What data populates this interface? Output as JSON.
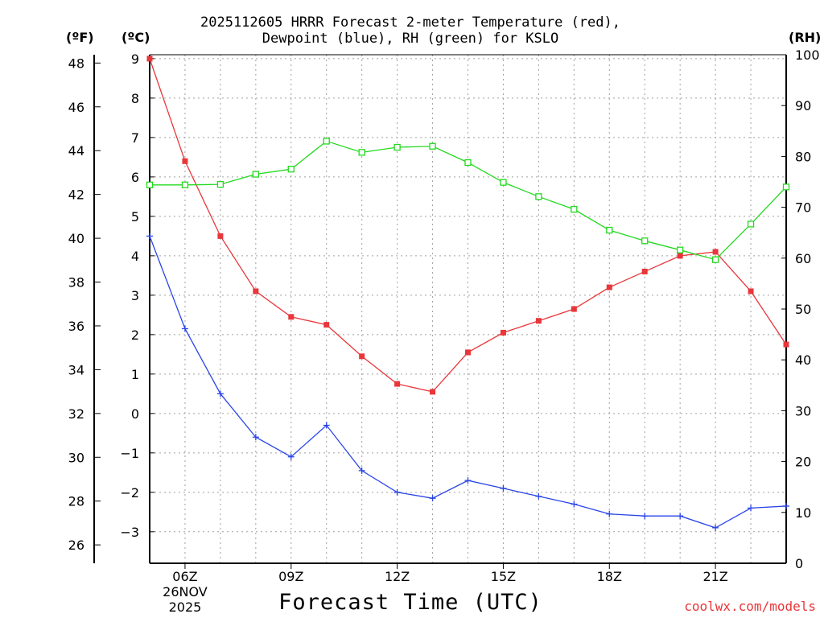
{
  "title": {
    "line1": "2025112605 HRRR Forecast 2-meter Temperature (red),",
    "line2": "Dewpoint (blue), RH (green) for KSLO"
  },
  "units": {
    "fahrenheit": "(ºF)",
    "celsius": "(ºC)",
    "rh": "(RH)"
  },
  "x_axis_label": "Forecast Time (UTC)",
  "credit": "coolwx.com/models",
  "colors": {
    "temperature": "#e8363a",
    "dewpoint": "#2a45e8",
    "rh": "#22d91e",
    "grid": "#a0a0a0"
  },
  "chart_data": {
    "type": "line",
    "x_hours": [
      5,
      6,
      7,
      8,
      9,
      10,
      11,
      12,
      13,
      14,
      15,
      16,
      17,
      18,
      19,
      20,
      21,
      22,
      23
    ],
    "x_range": [
      5,
      23
    ],
    "x_ticks": [
      {
        "hour": 6,
        "label": "06Z",
        "sub1": "26NOV",
        "sub2": "2025"
      },
      {
        "hour": 9,
        "label": "09Z"
      },
      {
        "hour": 12,
        "label": "12Z"
      },
      {
        "hour": 15,
        "label": "15Z"
      },
      {
        "hour": 18,
        "label": "18Z"
      },
      {
        "hour": 21,
        "label": "21Z"
      }
    ],
    "celsius_axis": {
      "range": [
        -3.8,
        9.1
      ],
      "ticks": [
        -3,
        -2,
        -1,
        0,
        1,
        2,
        3,
        4,
        5,
        6,
        7,
        8,
        9
      ]
    },
    "fahrenheit_axis": {
      "ticks": [
        26,
        28,
        30,
        32,
        34,
        36,
        38,
        40,
        42,
        44,
        46,
        48
      ]
    },
    "rh_axis": {
      "range": [
        0,
        100
      ],
      "ticks": [
        0,
        10,
        20,
        30,
        40,
        50,
        60,
        70,
        80,
        90,
        100
      ]
    },
    "series": [
      {
        "name": "Temperature",
        "axis": "celsius",
        "marker": "filled-square",
        "values": [
          9.0,
          6.4,
          4.5,
          3.1,
          2.45,
          2.25,
          1.45,
          0.75,
          0.55,
          1.55,
          2.05,
          2.35,
          2.65,
          3.2,
          3.6,
          4.0,
          4.1,
          3.1,
          1.75
        ]
      },
      {
        "name": "Dewpoint",
        "axis": "celsius",
        "marker": "plus",
        "values": [
          4.5,
          2.15,
          0.5,
          -0.6,
          -1.1,
          -0.3,
          -1.45,
          -2.0,
          -2.15,
          -1.7,
          -1.9,
          -2.1,
          -2.3,
          -2.55,
          -2.6,
          -2.6,
          -2.9,
          -2.4,
          -2.35
        ]
      },
      {
        "name": "RH",
        "axis": "rh",
        "marker": "open-square",
        "values": [
          74.4,
          74.4,
          74.5,
          76.5,
          77.5,
          83.0,
          80.8,
          81.8,
          82.0,
          78.8,
          74.9,
          72.1,
          69.6,
          65.5,
          63.4,
          61.6,
          59.7,
          66.7,
          74.0
        ]
      }
    ]
  }
}
